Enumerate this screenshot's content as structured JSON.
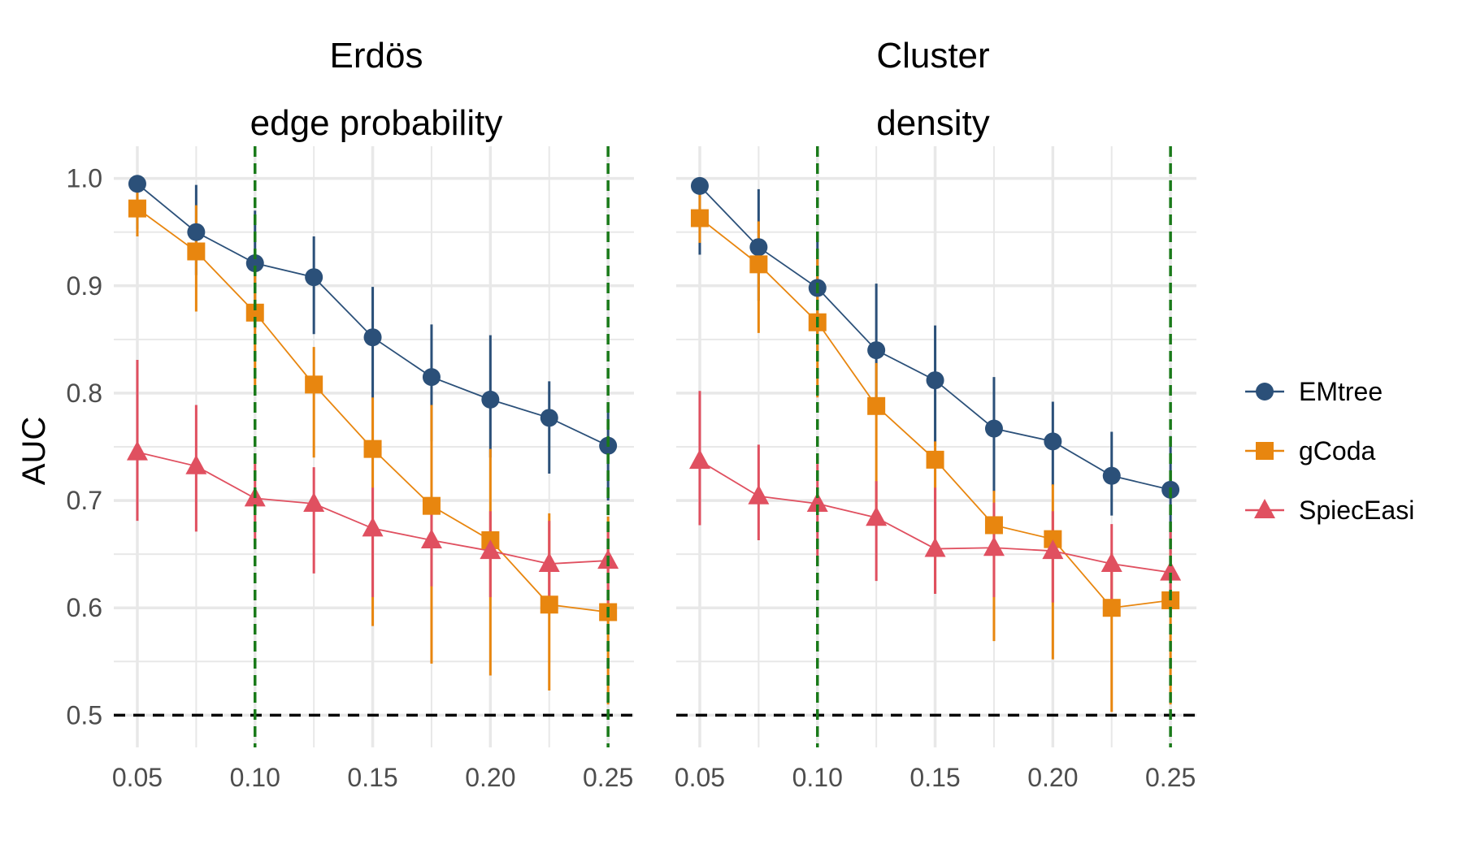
{
  "chart_data": {
    "type": "line",
    "ylabel": "AUC",
    "ylim": [
      0.47,
      1.03
    ],
    "yticks": [
      "0.5",
      "0.6",
      "0.7",
      "0.8",
      "0.9",
      "1.0"
    ],
    "ytick_values": [
      0.5,
      0.6,
      0.7,
      0.8,
      0.9,
      1.0
    ],
    "xtick_labels": [
      "0.05",
      "0.10",
      "0.15",
      "0.20",
      "0.25"
    ],
    "xtick_values": [
      0.05,
      0.1,
      0.15,
      0.2,
      0.25
    ],
    "xlim": [
      0.04,
      0.261
    ],
    "baseline": 0.5,
    "legend_position": "right",
    "colors": {
      "EMtree": "#2b5079",
      "gCoda": "#e8860f",
      "SpiecEasi": "#e05060",
      "vline": "#1a7a1a",
      "baseline": "#000000",
      "grid": "#e8e8e8"
    },
    "series_names": [
      "EMtree",
      "gCoda",
      "SpiecEasi"
    ],
    "panels": [
      {
        "title_line1": "Erdös",
        "title_line2": "edge probability",
        "x": [
          0.05,
          0.075,
          0.1,
          0.125,
          0.15,
          0.175,
          0.2,
          0.225,
          0.25
        ],
        "vlines": [
          0.1,
          0.25
        ],
        "series": [
          {
            "name": "EMtree",
            "marker": "circle",
            "y": [
              0.995,
              0.95,
              0.921,
              0.908,
              0.852,
              0.815,
              0.794,
              0.777,
              0.751
            ],
            "lo": [
              0.953,
              0.91,
              0.86,
              0.855,
              0.795,
              0.755,
              0.74,
              0.725,
              0.7
            ],
            "hi": [
              1.0,
              0.994,
              0.97,
              0.946,
              0.899,
              0.864,
              0.854,
              0.811,
              0.79
            ]
          },
          {
            "name": "gCoda",
            "marker": "square",
            "y": [
              0.972,
              0.932,
              0.875,
              0.808,
              0.748,
              0.695,
              0.663,
              0.603,
              0.596
            ],
            "lo": [
              0.946,
              0.876,
              0.8,
              0.74,
              0.583,
              0.548,
              0.537,
              0.523,
              0.51
            ],
            "hi": [
              0.996,
              0.975,
              0.93,
              0.843,
              0.796,
              0.789,
              0.748,
              0.688,
              0.685
            ]
          },
          {
            "name": "SpiecEasi",
            "marker": "triangle",
            "y": [
              0.745,
              0.732,
              0.702,
              0.697,
              0.674,
              0.663,
              0.653,
              0.641,
              0.644
            ],
            "lo": [
              0.681,
              0.671,
              0.658,
              0.632,
              0.61,
              0.62,
              0.61,
              0.6,
              0.601
            ],
            "hi": [
              0.831,
              0.789,
              0.736,
              0.731,
              0.712,
              0.701,
              0.69,
              0.681,
              0.68
            ]
          }
        ]
      },
      {
        "title_line1": "Cluster",
        "title_line2": "density",
        "x": [
          0.05,
          0.075,
          0.1,
          0.125,
          0.15,
          0.175,
          0.2,
          0.225,
          0.25
        ],
        "vlines": [
          0.1,
          0.25
        ],
        "series": [
          {
            "name": "EMtree",
            "marker": "circle",
            "y": [
              0.993,
              0.936,
              0.898,
              0.84,
              0.812,
              0.767,
              0.755,
              0.723,
              0.71
            ],
            "lo": [
              0.929,
              0.886,
              0.84,
              0.784,
              0.75,
              0.708,
              0.714,
              0.686,
              0.65
            ],
            "hi": [
              1.0,
              0.99,
              0.945,
              0.902,
              0.863,
              0.815,
              0.792,
              0.764,
              0.76
            ]
          },
          {
            "name": "gCoda",
            "marker": "square",
            "y": [
              0.963,
              0.92,
              0.866,
              0.788,
              0.738,
              0.677,
              0.664,
              0.6,
              0.607
            ],
            "lo": [
              0.94,
              0.856,
              0.796,
              0.69,
              0.613,
              0.569,
              0.552,
              0.503,
              0.51
            ],
            "hi": [
              0.985,
              0.96,
              0.925,
              0.828,
              0.755,
              0.709,
              0.715,
              0.651,
              0.653
            ]
          },
          {
            "name": "SpiecEasi",
            "marker": "triangle",
            "y": [
              0.737,
              0.704,
              0.697,
              0.684,
              0.655,
              0.656,
              0.653,
              0.641,
              0.633
            ],
            "lo": [
              0.677,
              0.663,
              0.647,
              0.625,
              0.613,
              0.61,
              0.605,
              0.6,
              0.595
            ],
            "hi": [
              0.802,
              0.752,
              0.734,
              0.718,
              0.712,
              0.698,
              0.69,
              0.678,
              0.671
            ]
          }
        ]
      }
    ]
  }
}
